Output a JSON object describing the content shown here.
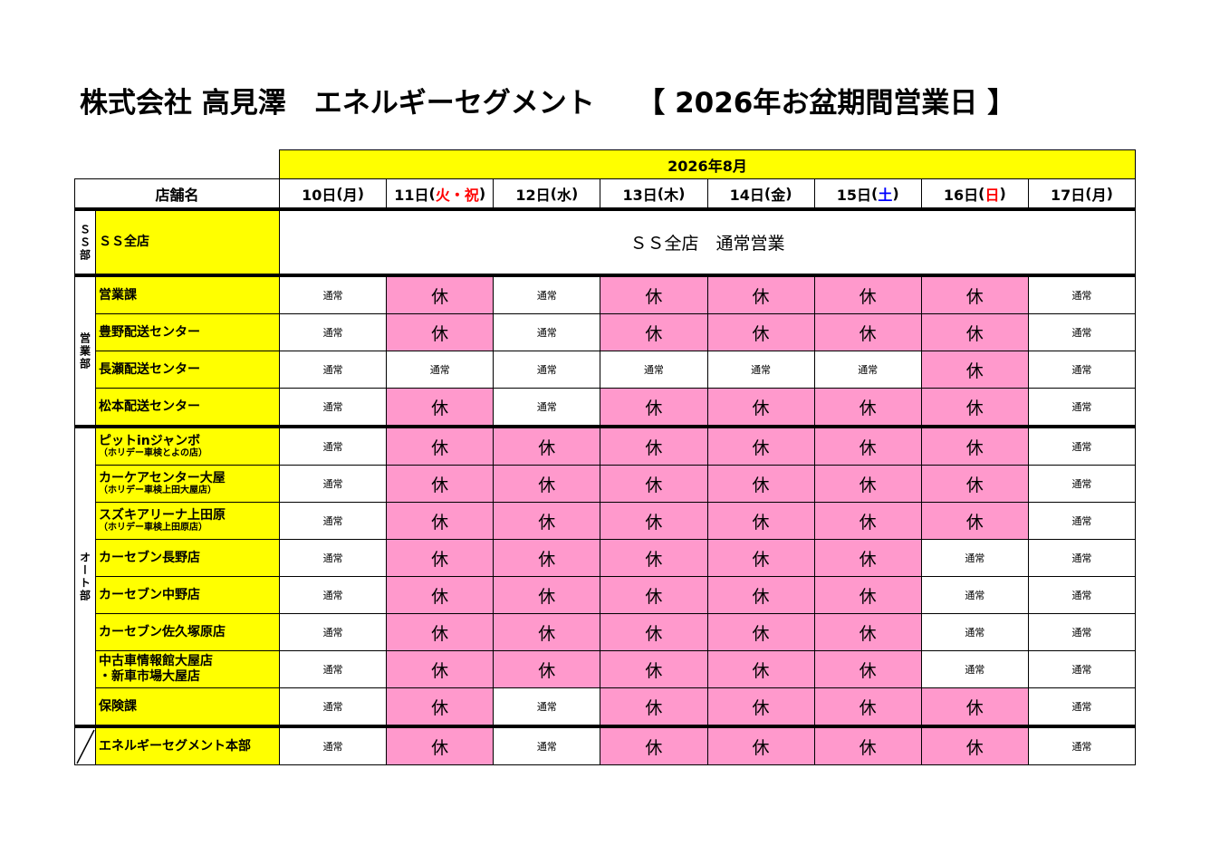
{
  "title": "株式会社 高見澤　エネルギーセグメント　　【 2026年お盆期間営業日 】",
  "table": {
    "month": "2026年8月",
    "store_header": "店舗名",
    "header_fill": "#ffff00",
    "store_fill": "#ffff00",
    "days": [
      {
        "date": "10日",
        "open": "(",
        "weekday": "月",
        "close": ")"
      },
      {
        "date": "11日",
        "open": "(",
        "weekday": "火・祝",
        "close": ")",
        "color": "#ff0000"
      },
      {
        "date": "12日",
        "open": "(",
        "weekday": "水",
        "close": ")"
      },
      {
        "date": "13日",
        "open": "(",
        "weekday": "木",
        "close": ")"
      },
      {
        "date": "14日",
        "open": "(",
        "weekday": "金",
        "close": ")"
      },
      {
        "date": "15日",
        "open": "(",
        "weekday": "土",
        "close": ")",
        "color": "#0000ff"
      },
      {
        "date": "16日",
        "open": "(",
        "weekday": "日",
        "close": ")",
        "color": "#ff0000"
      },
      {
        "date": "17日",
        "open": "(",
        "weekday": "月",
        "close": ")"
      }
    ],
    "cell_colors": {
      "休": "#ff99cc",
      "通常": "#ffffff"
    },
    "groups": [
      {
        "dept": "ＳＳ部",
        "rows": [
          {
            "store": "ＳＳ全店",
            "merged": "ＳＳ全店　通常営業"
          }
        ]
      },
      {
        "dept": "営業部",
        "rows": [
          {
            "store": "営業課",
            "cells": [
              "通常",
              "休",
              "通常",
              "休",
              "休",
              "休",
              "休",
              "通常"
            ]
          },
          {
            "store": "豊野配送センター",
            "cells": [
              "通常",
              "休",
              "通常",
              "休",
              "休",
              "休",
              "休",
              "通常"
            ]
          },
          {
            "store": "長瀬配送センター",
            "cells": [
              "通常",
              "通常",
              "通常",
              "通常",
              "通常",
              "通常",
              "休",
              "通常"
            ]
          },
          {
            "store": "松本配送センター",
            "cells": [
              "通常",
              "休",
              "通常",
              "休",
              "休",
              "休",
              "休",
              "通常"
            ]
          }
        ]
      },
      {
        "dept": "オート部",
        "rows": [
          {
            "store": "ピットinジャンボ",
            "sub": "（ホリデー車検とよの店）",
            "cells": [
              "通常",
              "休",
              "休",
              "休",
              "休",
              "休",
              "休",
              "通常"
            ]
          },
          {
            "store": "カーケアセンター大屋",
            "sub": "（ホリデー車検上田大屋店）",
            "cells": [
              "通常",
              "休",
              "休",
              "休",
              "休",
              "休",
              "休",
              "通常"
            ]
          },
          {
            "store": "スズキアリーナ上田原",
            "sub": "（ホリデー車検上田原店）",
            "cells": [
              "通常",
              "休",
              "休",
              "休",
              "休",
              "休",
              "休",
              "通常"
            ]
          },
          {
            "store": "カーセブン長野店",
            "cells": [
              "通常",
              "休",
              "休",
              "休",
              "休",
              "休",
              "通常",
              "通常"
            ]
          },
          {
            "store": "カーセブン中野店",
            "cells": [
              "通常",
              "休",
              "休",
              "休",
              "休",
              "休",
              "通常",
              "通常"
            ]
          },
          {
            "store": "カーセブン佐久塚原店",
            "cells": [
              "通常",
              "休",
              "休",
              "休",
              "休",
              "休",
              "通常",
              "通常"
            ]
          },
          {
            "store": "中古車情報館大屋店",
            "store2": "・新車市場大屋店",
            "cells": [
              "通常",
              "休",
              "休",
              "休",
              "休",
              "休",
              "通常",
              "通常"
            ]
          },
          {
            "store": "保険課",
            "cells": [
              "通常",
              "休",
              "通常",
              "休",
              "休",
              "休",
              "休",
              "通常"
            ]
          }
        ]
      },
      {
        "rows": [
          {
            "store": "エネルギーセグメント本部",
            "cells": [
              "通常",
              "休",
              "通常",
              "休",
              "休",
              "休",
              "休",
              "通常"
            ]
          }
        ]
      }
    ]
  }
}
